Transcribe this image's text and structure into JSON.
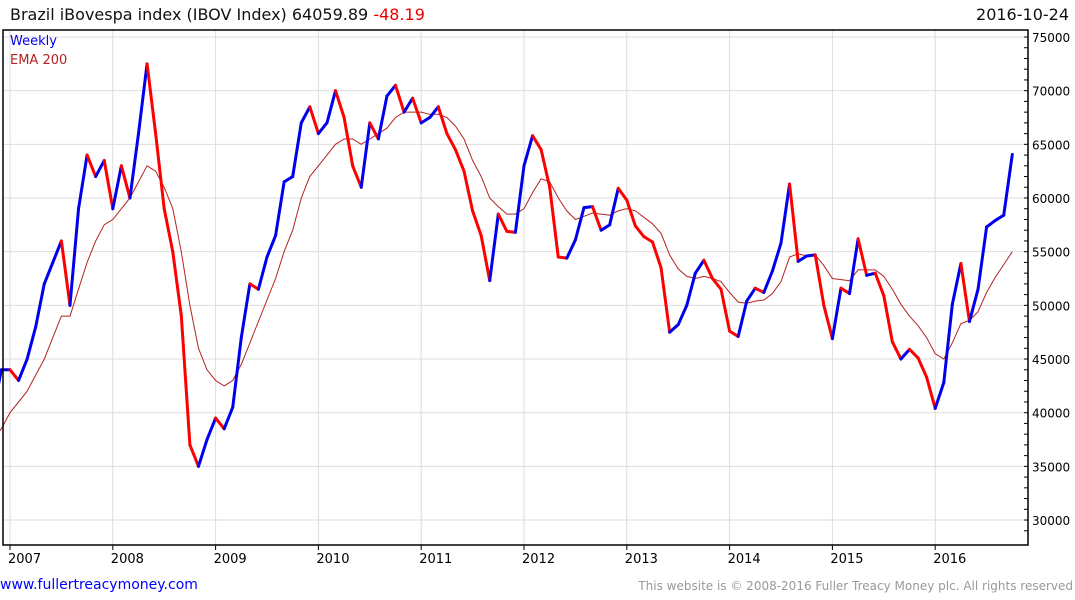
{
  "header": {
    "title": "Brazil iBovespa index (IBOV Index) 64059.89",
    "change": "-48.19",
    "date": "2016-10-24"
  },
  "footer": {
    "link": "www.fullertreacymoney.com",
    "copyright": "This website is © 2008-2016 Fuller Treacy Money plc. All rights reserved"
  },
  "colors": {
    "up": "#0000ee",
    "down": "#ff0000",
    "ema": "#b22222",
    "grid": "#dddddd"
  },
  "chart_data": {
    "type": "line",
    "title": "Brazil iBovespa index (IBOV Index)",
    "legend": [
      "Weekly",
      "EMA 200"
    ],
    "legend_position": "top-left",
    "x_start": "2006-11",
    "x_step": "month",
    "xticks": [
      "2007",
      "2008",
      "2009",
      "2010",
      "2011",
      "2012",
      "2013",
      "2014",
      "2015",
      "2016"
    ],
    "yticks": [
      "30000",
      "35000",
      "40000",
      "45000",
      "50000",
      "55000",
      "60000",
      "65000",
      "70000",
      "75000"
    ],
    "ylim": [
      27500,
      75500
    ],
    "grid": true,
    "series": [
      {
        "name": "Weekly",
        "values": [
          40000,
          44000,
          44000,
          43000,
          45000,
          48000,
          52000,
          54000,
          56000,
          50000,
          59000,
          64000,
          62000,
          63500,
          59000,
          63000,
          60000,
          66000,
          72500,
          66000,
          59000,
          55000,
          49000,
          37000,
          35000,
          37500,
          39500,
          38500,
          40500,
          47000,
          52000,
          51500,
          54500,
          56500,
          61500,
          62000,
          67000,
          68500,
          66000,
          67000,
          70000,
          67500,
          63000,
          61000,
          67000,
          65500,
          69500,
          70500,
          68000,
          69300,
          67000,
          67500,
          68500,
          66000,
          64500,
          62500,
          58800,
          56500,
          52300,
          58500,
          56900,
          56800,
          63000,
          65800,
          64500,
          61000,
          54500,
          54400,
          56100,
          59100,
          59200,
          57000,
          57500,
          60900,
          59800,
          57400,
          56400,
          55900,
          53500,
          47500,
          48200,
          50000,
          53000,
          54200,
          52500,
          51500,
          47600,
          47100,
          50400,
          51600,
          51200,
          53200,
          55800,
          61300,
          54100,
          54600,
          54700,
          50000,
          46900,
          51600,
          51100,
          56200,
          52800,
          53000,
          50900,
          46600,
          45000,
          45900,
          45100,
          43300,
          40400,
          42800,
          50100,
          53900,
          48500,
          51500,
          57300,
          57900,
          58400,
          64060
        ]
      },
      {
        "name": "EMA 200",
        "values": [
          37500,
          38500,
          40000,
          41000,
          42000,
          43500,
          45000,
          47000,
          49000,
          49000,
          51500,
          54000,
          56000,
          57500,
          58000,
          59000,
          60000,
          61500,
          63000,
          62500,
          61000,
          59000,
          55000,
          50000,
          46000,
          44000,
          43000,
          42500,
          43000,
          44500,
          46500,
          48500,
          50500,
          52500,
          55000,
          57000,
          60000,
          62000,
          63000,
          64000,
          65000,
          65500,
          65500,
          65000,
          65500,
          66000,
          66500,
          67500,
          68000,
          68000,
          68000,
          67800,
          67800,
          67500,
          66700,
          65500,
          63500,
          62000,
          60000,
          59200,
          58500,
          58500,
          59000,
          60500,
          61800,
          61500,
          60000,
          58800,
          58000,
          58300,
          58600,
          58500,
          58400,
          58800,
          59000,
          58800,
          58200,
          57600,
          56700,
          54700,
          53400,
          52700,
          52500,
          52700,
          52500,
          52200,
          51200,
          50300,
          50200,
          50400,
          50500,
          51100,
          52200,
          54500,
          54800,
          54600,
          54700,
          53700,
          52500,
          52400,
          52300,
          53300,
          53300,
          53300,
          52700,
          51500,
          50100,
          49000,
          48100,
          47000,
          45500,
          45000,
          46500,
          48300,
          48600,
          49400,
          51200,
          52600,
          53800,
          55000
        ]
      }
    ]
  }
}
